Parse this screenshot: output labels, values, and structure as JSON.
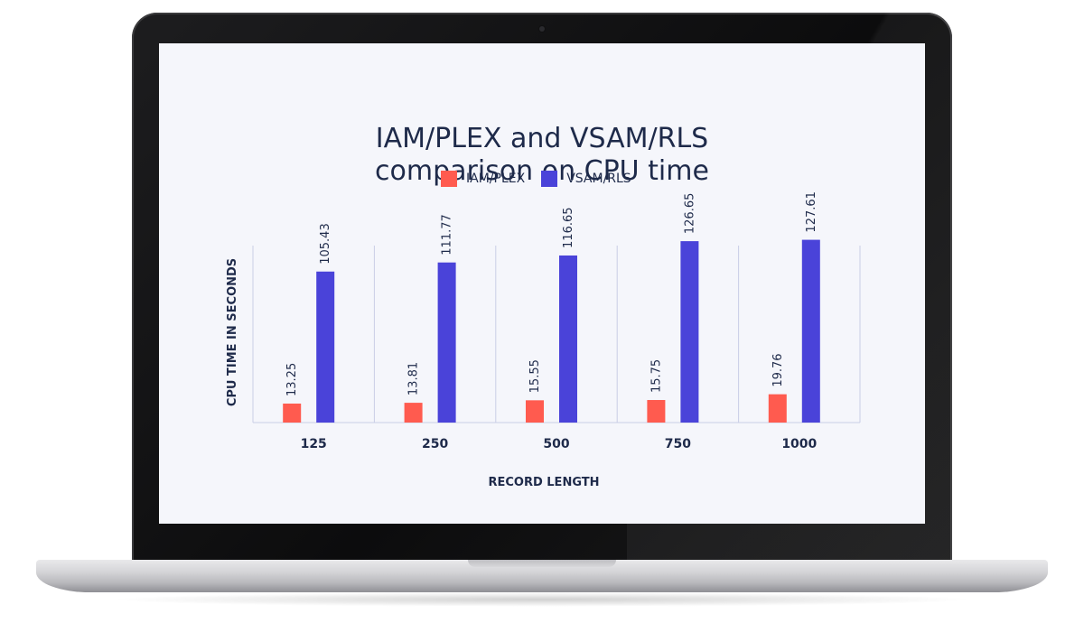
{
  "chart_data": {
    "type": "bar",
    "title_line1": "IAM/PLEX and VSAM/RLS",
    "title_line2": "comparison on CPU time",
    "xlabel": "RECORD LENGTH",
    "ylabel": "CPU TIME IN SECONDS",
    "categories": [
      "125",
      "250",
      "500",
      "750",
      "1000"
    ],
    "series": [
      {
        "name": "IAM/PLEX",
        "color": "#ff5b4f",
        "values": [
          13.25,
          13.81,
          15.55,
          15.75,
          19.76
        ],
        "labels": [
          "13.25",
          "13.81",
          "15.55",
          "15.75",
          "19.76"
        ]
      },
      {
        "name": "VSAM/RLS",
        "color": "#4a43d9",
        "values": [
          105.43,
          111.77,
          116.65,
          126.65,
          127.61
        ],
        "labels": [
          "105.43",
          "111.77",
          "116.65",
          "126.65",
          "127.61"
        ]
      }
    ],
    "ylim": [
      0,
      128
    ],
    "legend_position": "top-center",
    "grid": "vertical-separators"
  }
}
